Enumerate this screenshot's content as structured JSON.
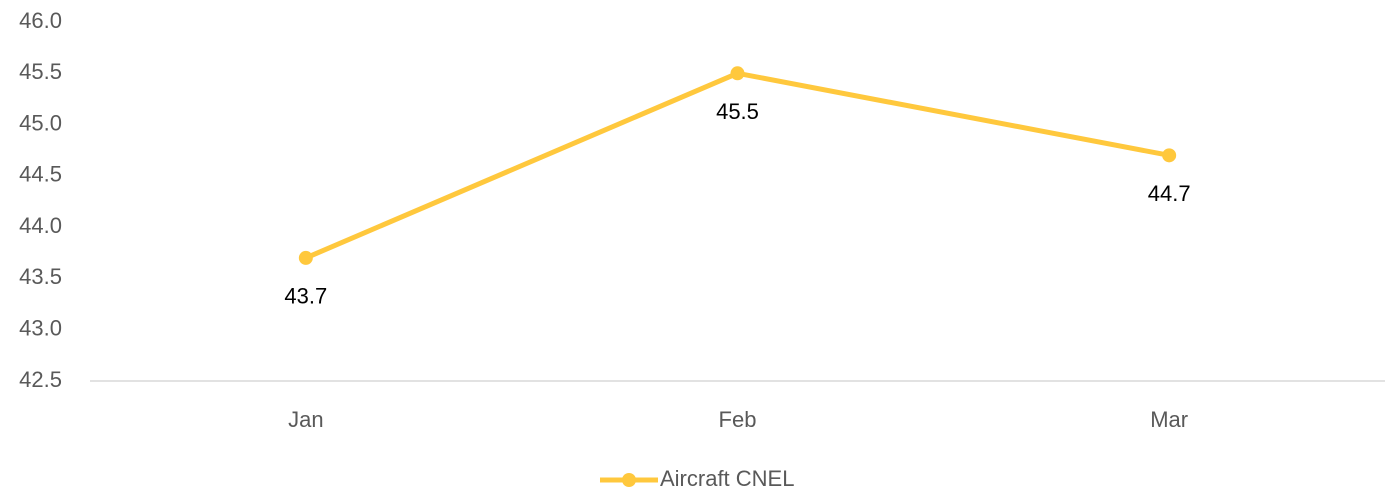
{
  "chart_data": {
    "type": "line",
    "categories": [
      "Jan",
      "Feb",
      "Mar"
    ],
    "series": [
      {
        "name": "Aircraft CNEL",
        "color": "#ffc83d",
        "values": [
          43.7,
          45.5,
          44.7
        ]
      }
    ],
    "ylim": [
      42.5,
      46.0
    ],
    "yticks": [
      42.5,
      {
        "value": 43,
        "label": "43.0"
      },
      43.5,
      {
        "value": 44,
        "label": "44.0"
      },
      44.5,
      {
        "value": 45,
        "label": "45.0"
      },
      45.5,
      {
        "value": 46,
        "label": "46.0"
      }
    ],
    "grid": false,
    "data_labels": "below",
    "legend": "bottom"
  }
}
